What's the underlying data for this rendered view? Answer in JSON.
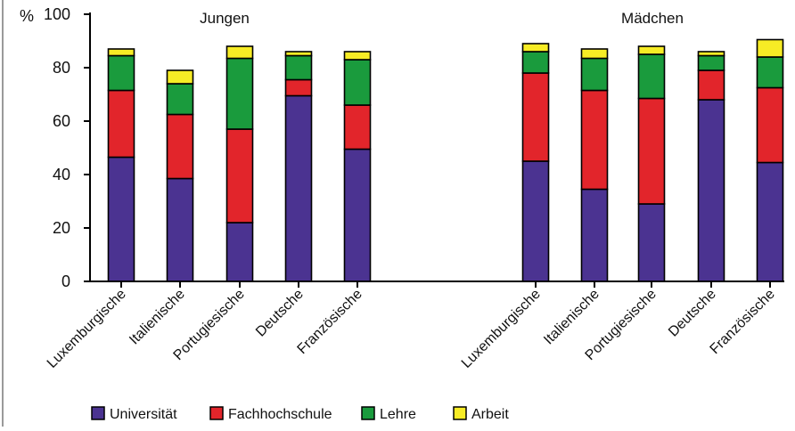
{
  "chart_data": {
    "type": "bar",
    "stacked": true,
    "ylabel": "%",
    "ylim": [
      0,
      100
    ],
    "yticks": [
      0,
      20,
      40,
      60,
      80,
      100
    ],
    "grid": false,
    "legend_position": "bottom",
    "categories": [
      "Luxemburgische",
      "Italienische",
      "Portugiesische",
      "Deutsche",
      "Französische"
    ],
    "groups": [
      {
        "name": "Jungen",
        "series": [
          {
            "name": "Universität",
            "color": "#4b3391",
            "values": [
              46.5,
              38.5,
              22,
              69.5,
              49.5
            ]
          },
          {
            "name": "Fachhochschule",
            "color": "#e2252b",
            "values": [
              25,
              24,
              35,
              6,
              16.5
            ]
          },
          {
            "name": "Lehre",
            "color": "#1a9b3d",
            "values": [
              13,
              11.5,
              26.5,
              9,
              17
            ]
          },
          {
            "name": "Arbeit",
            "color": "#f7ec25",
            "values": [
              2.5,
              5,
              4.5,
              1.5,
              3
            ]
          }
        ]
      },
      {
        "name": "Mädchen",
        "series": [
          {
            "name": "Universität",
            "color": "#4b3391",
            "values": [
              45,
              34.5,
              29,
              68,
              44.5
            ]
          },
          {
            "name": "Fachhochschule",
            "color": "#e2252b",
            "values": [
              33,
              37,
              39.5,
              11,
              28
            ]
          },
          {
            "name": "Lehre",
            "color": "#1a9b3d",
            "values": [
              8,
              12,
              16.5,
              5.5,
              11.5
            ]
          },
          {
            "name": "Arbeit",
            "color": "#f7ec25",
            "values": [
              3,
              3.5,
              3,
              1.5,
              6.5
            ]
          }
        ]
      }
    ],
    "legend": [
      {
        "name": "Universität",
        "color": "#4b3391"
      },
      {
        "name": "Fachhochschule",
        "color": "#e2252b"
      },
      {
        "name": "Lehre",
        "color": "#1a9b3d"
      },
      {
        "name": "Arbeit",
        "color": "#f7ec25"
      }
    ]
  }
}
